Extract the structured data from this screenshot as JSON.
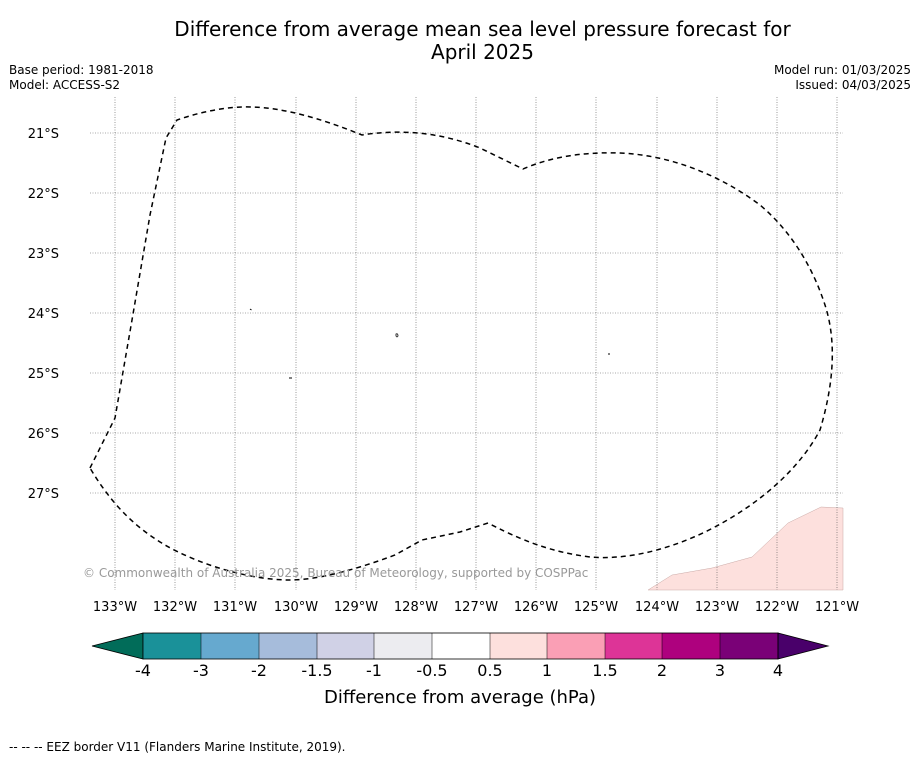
{
  "header": {
    "title_line1": "Difference from average mean sea level pressure forecast for",
    "title_line2": "April 2025",
    "base_period": "Base period: 1981-2018",
    "model": "Model: ACCESS-S2",
    "model_run": "Model run: 01/03/2025",
    "issued": "Issued: 04/03/2025"
  },
  "map": {
    "lon_labels": [
      "133°W",
      "132°W",
      "131°W",
      "130°W",
      "129°W",
      "128°W",
      "127°W",
      "126°W",
      "125°W",
      "124°W",
      "123°W",
      "122°W",
      "121°W"
    ],
    "lat_labels": [
      "21°S",
      "22°S",
      "23°S",
      "24°S",
      "25°S",
      "26°S",
      "27°S"
    ],
    "copyright": "© Commonwealth of Australia 2025, Bureau of Meteorology, supported by COSPPac",
    "anomaly_fill_color": "#fde0dd",
    "eez_line_color": "#000000"
  },
  "colorbar": {
    "tick_labels": [
      "-4",
      "-3",
      "-2",
      "-1.5",
      "-1",
      "-0.5",
      "0.5",
      "1",
      "1.5",
      "2",
      "3",
      "4"
    ],
    "colors": [
      "#1a9199",
      "#66a9cf",
      "#a6bcdb",
      "#d0d1e6",
      "#ececf0",
      "#ffffff",
      "#fde0dd",
      "#fa9fb5",
      "#dd3497",
      "#ae017e",
      "#7a0177"
    ],
    "under_color": "#016c59",
    "over_color": "#49006a",
    "label": "Difference from average (hPa)"
  },
  "footer": {
    "legend_text": "--  --  -- EEZ border V11 (Flanders Marine Institute, 2019)."
  }
}
